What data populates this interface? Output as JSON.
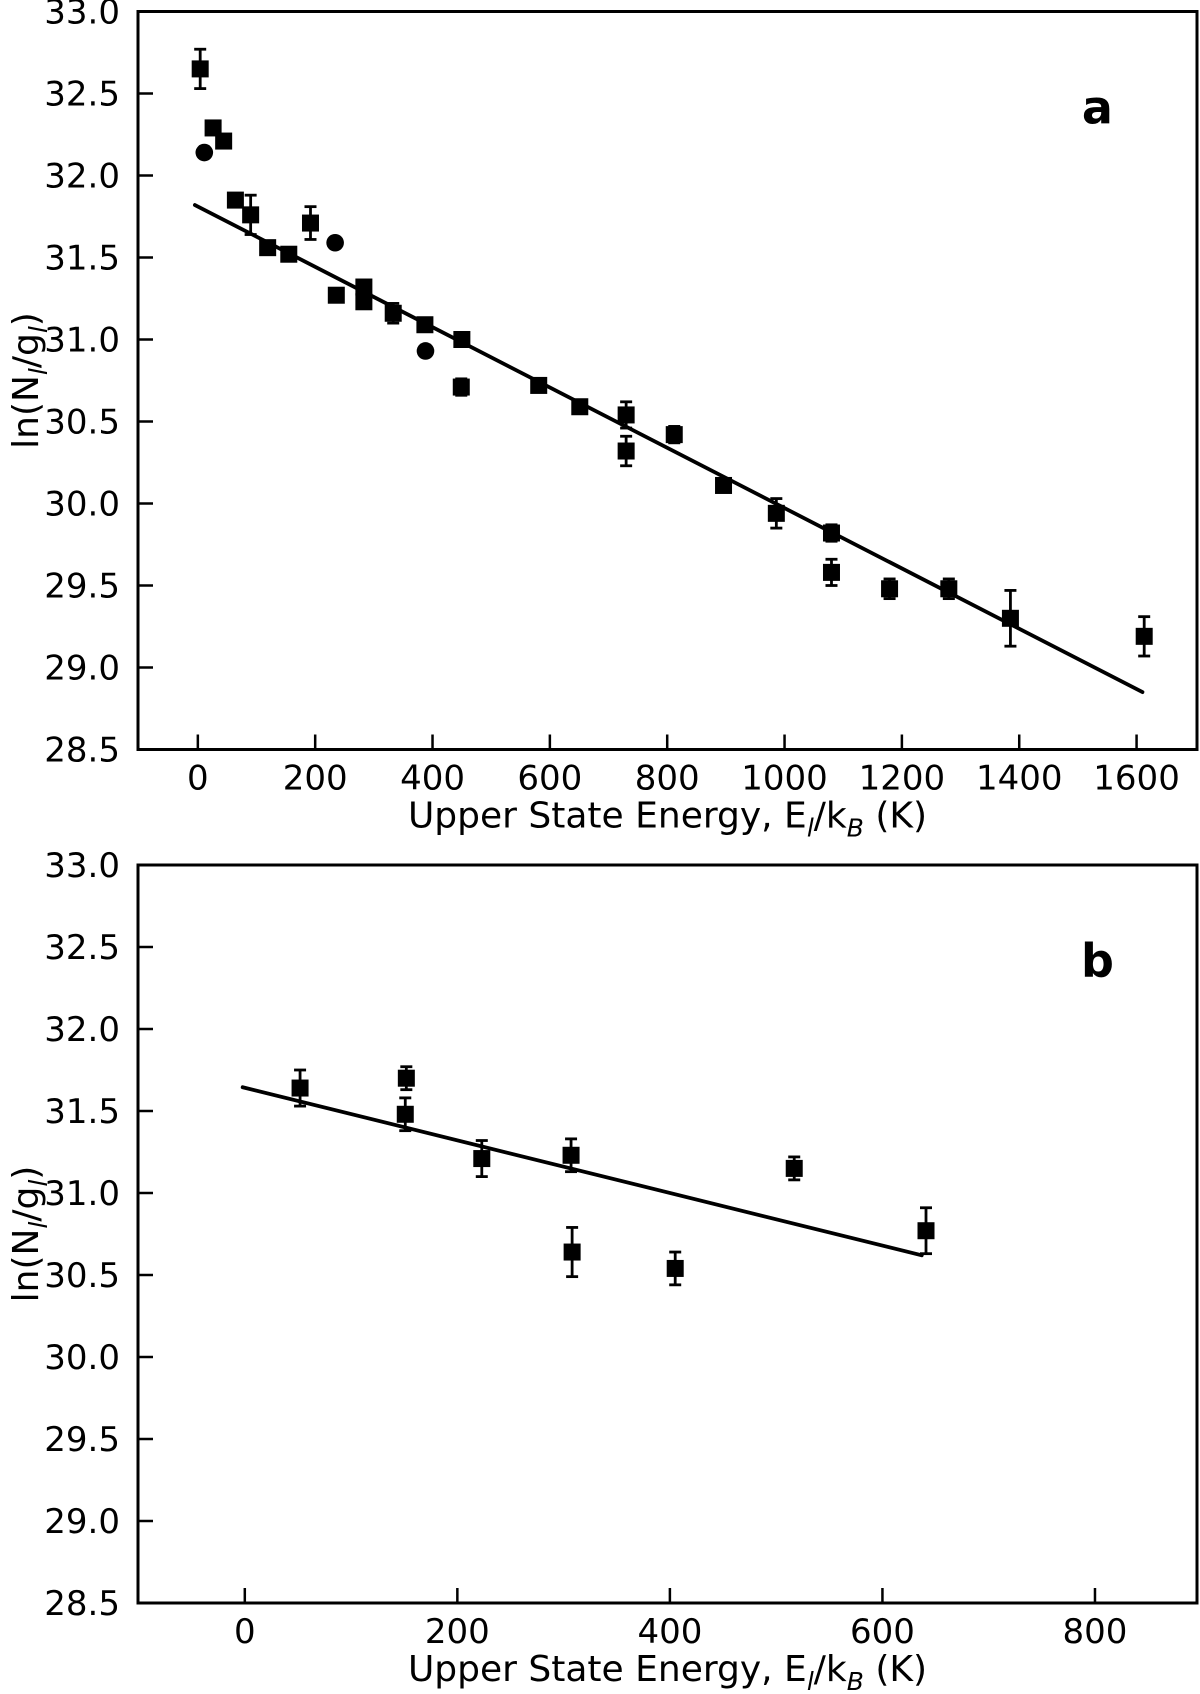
{
  "figure": {
    "ink_color": "#000000",
    "background_color": "#ffffff"
  },
  "chart_data": [
    {
      "id": "a",
      "type": "scatter",
      "panel_label": "a",
      "title": "",
      "xlabel_segments": [
        {
          "t": "Upper State Energy, E"
        },
        {
          "t": "l",
          "sub": true,
          "italic": true
        },
        {
          "t": "/k"
        },
        {
          "t": "B",
          "sub": true,
          "italic": true
        },
        {
          "t": " (K)"
        }
      ],
      "ylabel_segments": [
        {
          "t": "ln(N"
        },
        {
          "t": "l",
          "sub": true,
          "italic": true
        },
        {
          "t": "/g"
        },
        {
          "t": "l",
          "sub": true,
          "italic": true
        },
        {
          "t": ")"
        }
      ],
      "xlim": [
        -102,
        1703
      ],
      "ylim": [
        28.5,
        33.0
      ],
      "x_ticks": [
        0,
        200,
        400,
        600,
        800,
        1000,
        1200,
        1400,
        1600
      ],
      "y_ticks": [
        28.5,
        29.0,
        29.5,
        30.0,
        30.5,
        31.0,
        31.5,
        32.0,
        32.5,
        33.0
      ],
      "grid": false,
      "legend": "none",
      "fit_line": {
        "x1": -5,
        "y1": 31.82,
        "x2": 1610,
        "y2": 28.85
      },
      "points": [
        {
          "x": 4,
          "y": 32.65,
          "err": 0.12,
          "marker": "square"
        },
        {
          "x": 26,
          "y": 32.29,
          "err": 0,
          "marker": "square"
        },
        {
          "x": 44,
          "y": 32.21,
          "err": 0,
          "marker": "square"
        },
        {
          "x": 11,
          "y": 32.14,
          "err": 0,
          "marker": "circle"
        },
        {
          "x": 64,
          "y": 31.85,
          "err": 0,
          "marker": "square"
        },
        {
          "x": 90,
          "y": 31.76,
          "err": 0.12,
          "marker": "square"
        },
        {
          "x": 119,
          "y": 31.56,
          "err": 0,
          "marker": "square"
        },
        {
          "x": 155,
          "y": 31.52,
          "err": 0,
          "marker": "square"
        },
        {
          "x": 192,
          "y": 31.71,
          "err": 0.1,
          "marker": "square"
        },
        {
          "x": 234,
          "y": 31.59,
          "err": 0,
          "marker": "circle"
        },
        {
          "x": 236,
          "y": 31.27,
          "err": 0,
          "marker": "square"
        },
        {
          "x": 283,
          "y": 31.32,
          "err": 0,
          "marker": "square"
        },
        {
          "x": 283,
          "y": 31.23,
          "err": 0,
          "marker": "square"
        },
        {
          "x": 333,
          "y": 31.16,
          "err": 0.06,
          "marker": "square"
        },
        {
          "x": 387,
          "y": 31.09,
          "err": 0,
          "marker": "square"
        },
        {
          "x": 388,
          "y": 30.93,
          "err": 0,
          "marker": "circle"
        },
        {
          "x": 450,
          "y": 31.0,
          "err": 0,
          "marker": "square"
        },
        {
          "x": 449,
          "y": 30.71,
          "err": 0.05,
          "marker": "square"
        },
        {
          "x": 581,
          "y": 30.72,
          "err": 0,
          "marker": "square"
        },
        {
          "x": 651,
          "y": 30.59,
          "err": 0,
          "marker": "square"
        },
        {
          "x": 730,
          "y": 30.54,
          "err": 0.08,
          "marker": "square"
        },
        {
          "x": 730,
          "y": 30.32,
          "err": 0.09,
          "marker": "square"
        },
        {
          "x": 812,
          "y": 30.42,
          "err": 0.05,
          "marker": "square"
        },
        {
          "x": 896,
          "y": 30.11,
          "err": 0.04,
          "marker": "square"
        },
        {
          "x": 986,
          "y": 29.94,
          "err": 0.09,
          "marker": "square"
        },
        {
          "x": 1080,
          "y": 29.82,
          "err": 0.05,
          "marker": "square"
        },
        {
          "x": 1080,
          "y": 29.58,
          "err": 0.08,
          "marker": "square"
        },
        {
          "x": 1179,
          "y": 29.48,
          "err": 0.06,
          "marker": "square"
        },
        {
          "x": 1280,
          "y": 29.48,
          "err": 0.06,
          "marker": "square"
        },
        {
          "x": 1385,
          "y": 29.3,
          "err": 0.17,
          "marker": "square"
        },
        {
          "x": 1613,
          "y": 29.19,
          "err": 0.12,
          "marker": "square"
        }
      ]
    },
    {
      "id": "b",
      "type": "scatter",
      "panel_label": "b",
      "title": "",
      "xlabel_segments": [
        {
          "t": "Upper State Energy, E"
        },
        {
          "t": "l",
          "sub": true,
          "italic": true
        },
        {
          "t": "/k"
        },
        {
          "t": "B",
          "sub": true,
          "italic": true
        },
        {
          "t": " (K)"
        }
      ],
      "ylabel_segments": [
        {
          "t": "ln(N"
        },
        {
          "t": "l",
          "sub": true,
          "italic": true
        },
        {
          "t": "/g"
        },
        {
          "t": "l",
          "sub": true,
          "italic": true
        },
        {
          "t": ")"
        }
      ],
      "xlim": [
        -100.5,
        896
      ],
      "ylim": [
        28.5,
        33.0
      ],
      "x_ticks": [
        0,
        200,
        400,
        600,
        800
      ],
      "y_ticks": [
        28.5,
        29.0,
        29.5,
        30.0,
        30.5,
        31.0,
        31.5,
        32.0,
        32.5,
        33.0
      ],
      "grid": false,
      "legend": "none",
      "fit_line": {
        "x1": -2,
        "y1": 31.645,
        "x2": 637,
        "y2": 30.62
      },
      "points": [
        {
          "x": 52,
          "y": 31.64,
          "err": 0.11,
          "marker": "square"
        },
        {
          "x": 152,
          "y": 31.7,
          "err": 0.07,
          "marker": "square"
        },
        {
          "x": 151,
          "y": 31.48,
          "err": 0.1,
          "marker": "square"
        },
        {
          "x": 223,
          "y": 31.21,
          "err": 0.11,
          "marker": "square"
        },
        {
          "x": 307,
          "y": 31.23,
          "err": 0.1,
          "marker": "square"
        },
        {
          "x": 308,
          "y": 30.64,
          "err": 0.15,
          "marker": "square"
        },
        {
          "x": 405,
          "y": 30.54,
          "err": 0.1,
          "marker": "square"
        },
        {
          "x": 517,
          "y": 31.15,
          "err": 0.07,
          "marker": "square"
        },
        {
          "x": 641,
          "y": 30.77,
          "err": 0.14,
          "marker": "square"
        }
      ]
    }
  ]
}
